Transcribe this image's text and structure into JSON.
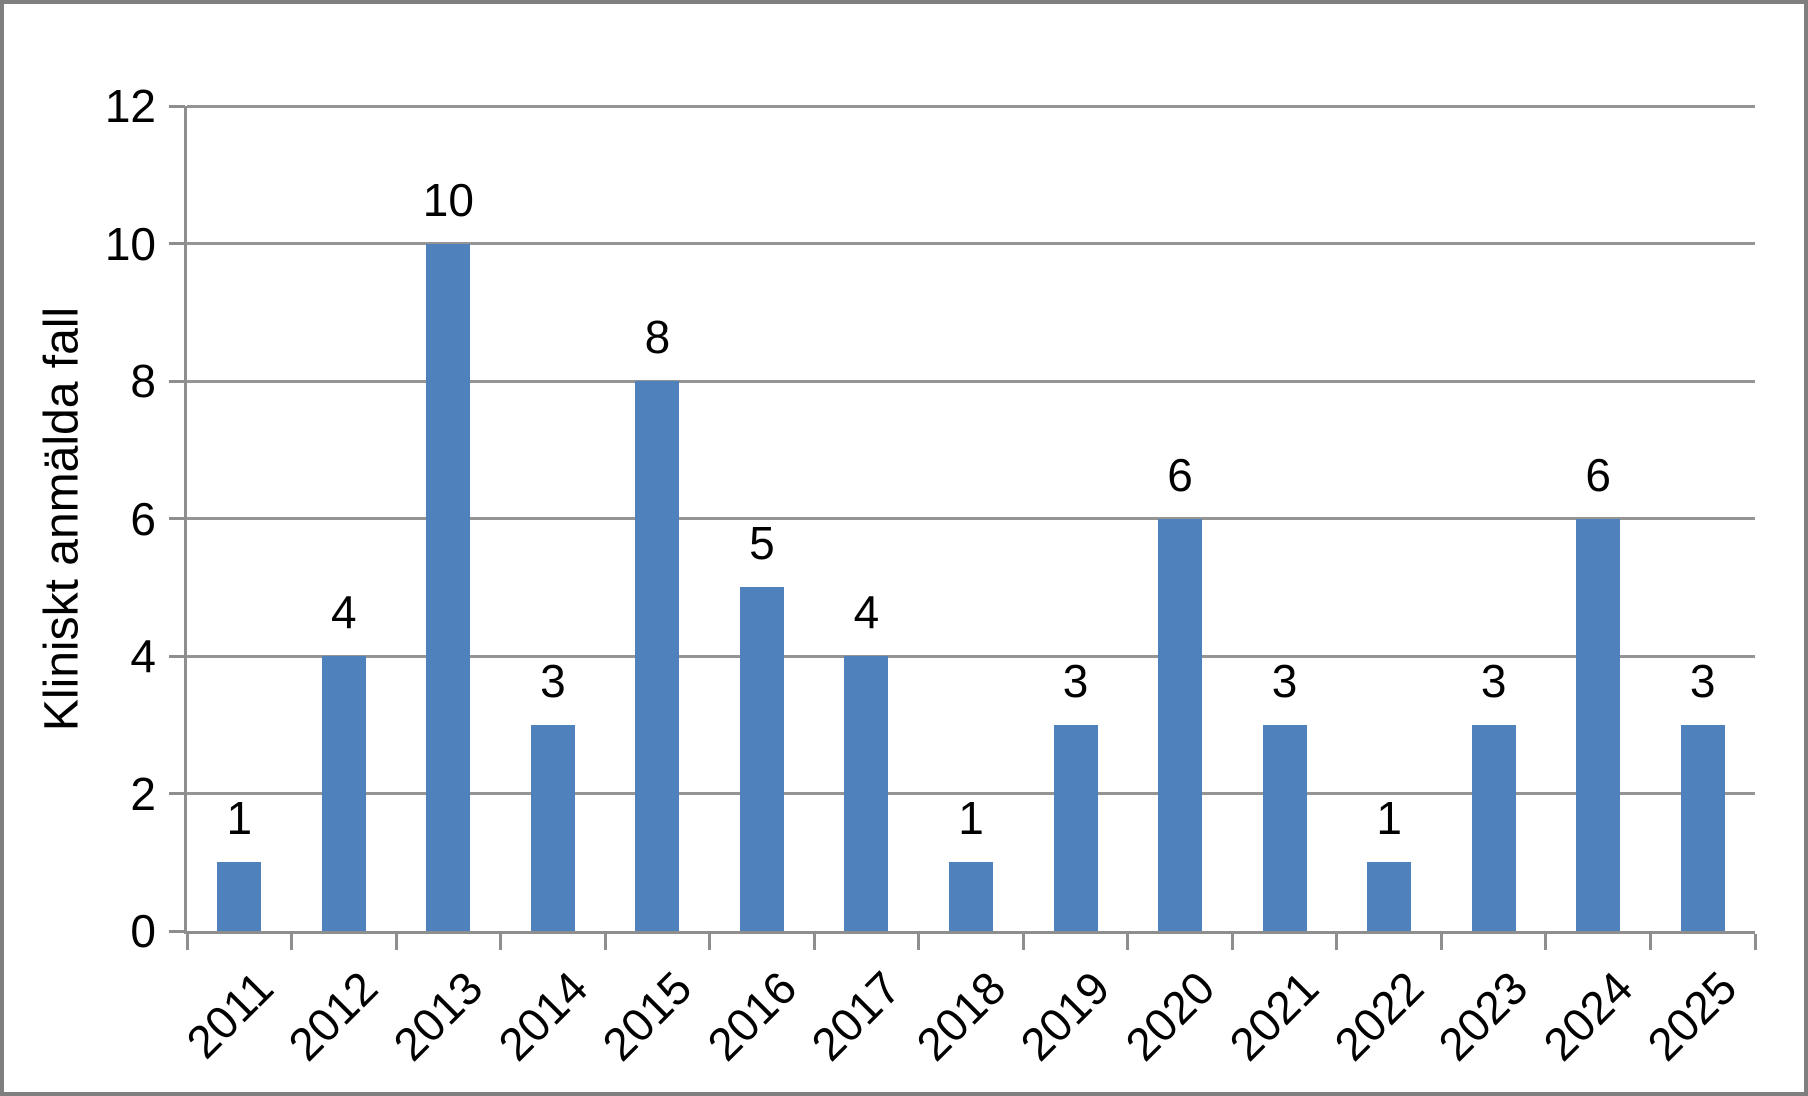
{
  "chart_data": {
    "type": "bar",
    "title": "",
    "categories": [
      "2011",
      "2012",
      "2013",
      "2014",
      "2015",
      "2016",
      "2017",
      "2018",
      "2019",
      "2020",
      "2021",
      "2022",
      "2023",
      "2024",
      "2025"
    ],
    "values": [
      1,
      4,
      10,
      3,
      8,
      5,
      4,
      1,
      3,
      6,
      3,
      1,
      3,
      6,
      3
    ],
    "xlabel": "",
    "ylabel": "Kliniskt anmälda fall",
    "ylim": [
      0,
      12
    ],
    "yticks": [
      0,
      2,
      4,
      6,
      8,
      10,
      12
    ],
    "grid": true,
    "legend": false,
    "data_labels": true,
    "bar_color": "#4f81bd",
    "axis_color": "#8e8e8e",
    "gridline_color": "#949494",
    "text_color": "#000000",
    "frame_border_color": "#7f7f7f",
    "background_color": "#ffffff"
  }
}
